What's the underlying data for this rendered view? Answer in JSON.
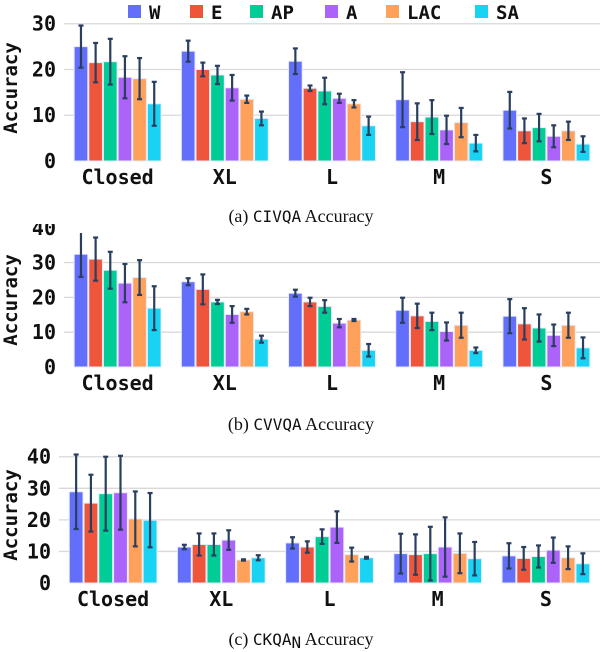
{
  "legend": {
    "position": "top",
    "items": [
      {
        "name": "W",
        "color": "#636efa"
      },
      {
        "name": "E",
        "color": "#ef553b"
      },
      {
        "name": "AP",
        "color": "#00cc96"
      },
      {
        "name": "A",
        "color": "#ab63fa"
      },
      {
        "name": "LAC",
        "color": "#ffa15a"
      },
      {
        "name": "SA",
        "color": "#19d3f3"
      }
    ]
  },
  "error_bar_color": "#2a3f5f",
  "chart_data": [
    {
      "type": "bar",
      "caption_prefix": "(a) ",
      "caption_mono": "CIVQA",
      "caption_sub": "",
      "caption_suffix": " Accuracy",
      "ylabel": "Accuracy",
      "ylim": [
        0,
        33
      ],
      "yticks": [
        0,
        10,
        20,
        30
      ],
      "grid": true,
      "categories": [
        "Closed",
        "XL",
        "L",
        "M",
        "S"
      ],
      "series": [
        {
          "name": "W",
          "values": [
            25.0,
            24.0,
            21.8,
            13.4,
            11.1
          ],
          "errors": [
            4.6,
            2.3,
            2.8,
            6.0,
            4.0
          ]
        },
        {
          "name": "E",
          "values": [
            21.5,
            20.0,
            15.9,
            8.6,
            6.6
          ],
          "errors": [
            4.3,
            1.5,
            0.6,
            4.0,
            2.7
          ]
        },
        {
          "name": "AP",
          "values": [
            21.7,
            18.8,
            15.3,
            9.6,
            7.3
          ],
          "errors": [
            5.0,
            2.0,
            2.9,
            3.7,
            3.0
          ]
        },
        {
          "name": "A",
          "values": [
            18.3,
            16.0,
            13.7,
            6.8,
            5.4
          ],
          "errors": [
            4.6,
            2.8,
            1.0,
            3.1,
            2.4
          ]
        },
        {
          "name": "LAC",
          "values": [
            18.0,
            13.5,
            12.5,
            8.4,
            6.6
          ],
          "errors": [
            4.5,
            0.8,
            0.8,
            3.2,
            2.0
          ]
        },
        {
          "name": "SA",
          "values": [
            12.5,
            9.3,
            7.7,
            3.9,
            3.7
          ],
          "errors": [
            4.8,
            1.5,
            2.0,
            1.8,
            1.7
          ]
        }
      ]
    },
    {
      "type": "bar",
      "caption_prefix": "(b) ",
      "caption_mono": "CVVQA",
      "caption_sub": "",
      "caption_suffix": " Accuracy",
      "ylabel": "Accuracy",
      "ylim": [
        0,
        38.5
      ],
      "yticks": [
        0,
        10,
        20,
        30,
        40
      ],
      "grid": true,
      "categories": [
        "Closed",
        "XL",
        "L",
        "M",
        "S"
      ],
      "series": [
        {
          "name": "W",
          "values": [
            32.4,
            24.5,
            21.2,
            16.3,
            14.6
          ],
          "errors": [
            6.5,
            1.0,
            1.0,
            3.6,
            4.9
          ]
        },
        {
          "name": "E",
          "values": [
            31.0,
            22.3,
            18.7,
            14.7,
            12.4
          ],
          "errors": [
            6.2,
            4.3,
            1.2,
            3.5,
            4.5
          ]
        },
        {
          "name": "AP",
          "values": [
            27.8,
            18.7,
            17.4,
            13.1,
            11.2
          ],
          "errors": [
            5.3,
            0.6,
            1.8,
            2.5,
            3.9
          ]
        },
        {
          "name": "A",
          "values": [
            24.1,
            15.1,
            12.6,
            10.2,
            9.1
          ],
          "errors": [
            5.5,
            2.4,
            1.2,
            2.6,
            3.1
          ]
        },
        {
          "name": "LAC",
          "values": [
            25.7,
            15.9,
            13.5,
            12.0,
            12.0
          ],
          "errors": [
            5.0,
            0.8,
            0.3,
            3.6,
            3.6
          ]
        },
        {
          "name": "SA",
          "values": [
            16.9,
            8.0,
            4.8,
            4.8,
            5.5
          ],
          "errors": [
            6.3,
            1.0,
            1.8,
            0.8,
            3.0
          ]
        }
      ]
    },
    {
      "type": "bar",
      "caption_prefix": "(c) ",
      "caption_mono": "CKQA",
      "caption_sub": "N",
      "caption_suffix": " Accuracy",
      "ylabel": "Accuracy",
      "ylim": [
        0,
        41.5
      ],
      "yticks": [
        0,
        10,
        20,
        30,
        40
      ],
      "grid": true,
      "categories": [
        "Closed",
        "XL",
        "L",
        "M",
        "S"
      ],
      "series": [
        {
          "name": "W",
          "values": [
            28.9,
            11.4,
            12.7,
            9.3,
            8.6
          ],
          "errors": [
            11.8,
            0.7,
            1.8,
            6.3,
            4.0
          ]
        },
        {
          "name": "E",
          "values": [
            25.3,
            12.2,
            11.4,
            9.0,
            7.8
          ],
          "errors": [
            9.0,
            3.5,
            1.8,
            6.4,
            3.6
          ]
        },
        {
          "name": "AP",
          "values": [
            28.3,
            12.2,
            14.7,
            9.3,
            8.4
          ],
          "errors": [
            11.7,
            3.5,
            2.3,
            8.5,
            3.5
          ]
        },
        {
          "name": "A",
          "values": [
            28.6,
            13.6,
            17.7,
            11.4,
            10.4
          ],
          "errors": [
            11.7,
            3.1,
            5.0,
            9.4,
            4.0
          ]
        },
        {
          "name": "LAC",
          "values": [
            20.3,
            7.3,
            9.0,
            9.4,
            8.0
          ],
          "errors": [
            8.7,
            0.2,
            2.2,
            6.3,
            3.6
          ]
        },
        {
          "name": "SA",
          "values": [
            19.9,
            8.0,
            8.0,
            7.7,
            6.1
          ],
          "errors": [
            8.6,
            0.8,
            0.3,
            5.3,
            3.3
          ]
        }
      ]
    }
  ]
}
